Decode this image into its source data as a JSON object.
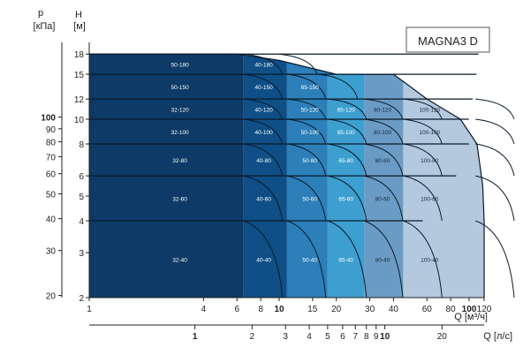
{
  "chart_data": {
    "type": "area",
    "title": "MAGNA3 D",
    "y_left_label_top": "p",
    "y_left_label_unit": "[кПа]",
    "y_right_label_top": "H",
    "y_right_label_unit": "[м]",
    "x_main_label": "Q [м³/ч]",
    "x_secondary_label": "Q [л/с]",
    "scale": "log-log",
    "x_ticks_m3h": [
      "1",
      "4",
      "6",
      "8",
      "10",
      "15",
      "20",
      "30",
      "40",
      "60",
      "80",
      "100",
      "120"
    ],
    "x_ticks_m3h_bold": [
      "10",
      "100"
    ],
    "x_ticks_ls": [
      "1",
      "2",
      "3",
      "4",
      "5",
      "6",
      "7",
      "8",
      "9",
      "10",
      "20"
    ],
    "x_ticks_ls_bold": [
      "1",
      "10"
    ],
    "y_ticks_H": [
      "2",
      "3",
      "4",
      "5",
      "6",
      "8",
      "10",
      "12",
      "15",
      "18"
    ],
    "y_ticks_kpa": [
      "20",
      "30",
      "40",
      "50",
      "60",
      "70",
      "80",
      "90",
      "100"
    ],
    "y_ticks_kpa_bold": [
      "100"
    ],
    "band_colors": [
      "#0d3a66",
      "#0f4f86",
      "#2c7fb8",
      "#3d9fd0",
      "#6a9bc4",
      "#b4c9de"
    ],
    "bands": [
      {
        "hmax": 4,
        "labels": [
          "32-40",
          "40-40",
          "50-40",
          "65-40",
          "80-40",
          "100-40"
        ]
      },
      {
        "hmax": 6,
        "labels": [
          "32-60",
          "40-60",
          "50-60",
          "65-60",
          "80-60",
          "100-60"
        ]
      },
      {
        "hmax": 8,
        "labels": [
          "32-80",
          "40-80",
          "50-80",
          "65-80",
          "80-80",
          "100-80"
        ]
      },
      {
        "hmax": 10,
        "labels": [
          "32-100",
          "40-100",
          "50-100",
          "65-100",
          "80-100",
          "100-100"
        ]
      },
      {
        "hmax": 12,
        "labels": [
          "32-120",
          "40-120",
          "50-120",
          "65-120",
          "80-120",
          "100-120"
        ]
      },
      {
        "hmax": 15,
        "labels": [
          "50-150",
          "40-150",
          "65-150"
        ]
      },
      {
        "hmax": 18,
        "labels": [
          "50-180",
          "40-180"
        ]
      }
    ]
  }
}
